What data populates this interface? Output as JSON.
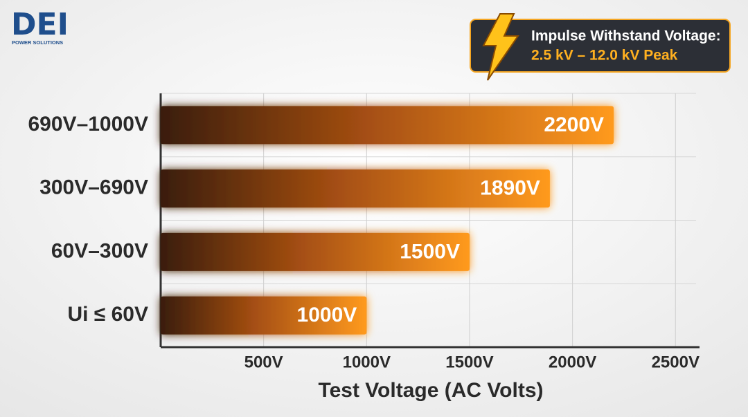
{
  "logo": {
    "name": "DEI",
    "tagline": "POWER SOLUTIONS"
  },
  "chart_data": {
    "type": "bar",
    "orientation": "horizontal",
    "callout": {
      "title": "Impulse Withstand Voltage:",
      "text": "2.5 kV – 12.0 kV Peak"
    },
    "categories": [
      "690V–1000V",
      "300V–690V",
      "60V–300V",
      "Ui ≤ 60V"
    ],
    "values": [
      2200,
      1890,
      1500,
      1000
    ],
    "value_labels": [
      "2200V",
      "1890V",
      "1500V",
      "1000V"
    ],
    "color": "#ff9a1f",
    "xlabel": "Test Voltage (AC Volts)",
    "xlim": [
      0,
      2600
    ],
    "xticks": [
      {
        "value": 500,
        "label": "500V"
      },
      {
        "value": 1000,
        "label": "1000V"
      },
      {
        "value": 1500,
        "label": "1500V"
      },
      {
        "value": 2000,
        "label": "2000V"
      },
      {
        "value": 2500,
        "label": "2500V"
      }
    ],
    "grid": true
  }
}
